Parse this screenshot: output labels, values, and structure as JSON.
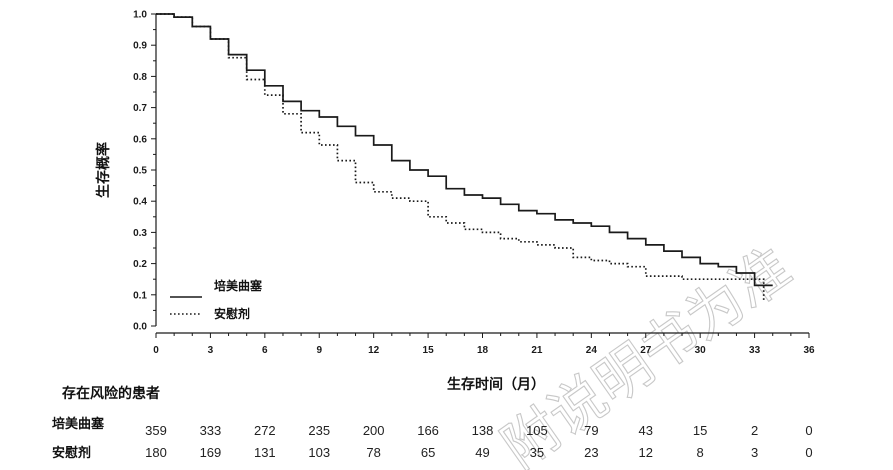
{
  "chart_data": {
    "type": "line",
    "title": "",
    "xlabel": "生存时间（月）",
    "ylabel": "生存概率",
    "xlim": [
      0,
      36
    ],
    "ylim": [
      0,
      1
    ],
    "x_ticks": [
      0,
      3,
      6,
      9,
      12,
      15,
      18,
      21,
      24,
      27,
      30,
      33,
      36
    ],
    "y_ticks": [
      "0.0",
      "0.1",
      "0.2",
      "0.3",
      "0.4",
      "0.5",
      "0.6",
      "0.7",
      "0.8",
      "0.9",
      "1.0"
    ],
    "grid": false,
    "legend_position": "bottom-left",
    "series": [
      {
        "name": "培美曲塞",
        "style": "solid",
        "color": "#1a1a1a",
        "x": [
          0,
          1,
          2,
          3,
          4,
          5,
          6,
          7,
          8,
          9,
          10,
          11,
          12,
          13,
          14,
          15,
          16,
          17,
          18,
          19,
          20,
          21,
          22,
          23,
          24,
          25,
          26,
          27,
          28,
          29,
          30,
          31,
          32,
          33,
          34
        ],
        "y": [
          1.0,
          0.99,
          0.96,
          0.92,
          0.87,
          0.82,
          0.77,
          0.72,
          0.69,
          0.67,
          0.64,
          0.61,
          0.58,
          0.53,
          0.5,
          0.48,
          0.44,
          0.42,
          0.41,
          0.39,
          0.37,
          0.36,
          0.34,
          0.33,
          0.32,
          0.3,
          0.28,
          0.26,
          0.24,
          0.22,
          0.2,
          0.19,
          0.17,
          0.13,
          0.13
        ]
      },
      {
        "name": "安慰剂",
        "style": "dotted",
        "color": "#1a1a1a",
        "x": [
          0,
          1,
          2,
          3,
          4,
          5,
          6,
          7,
          8,
          9,
          10,
          11,
          12,
          13,
          14,
          15,
          16,
          17,
          18,
          19,
          20,
          21,
          22,
          23,
          24,
          25,
          26,
          27,
          28,
          29,
          30,
          31,
          32,
          33,
          33.5
        ],
        "y": [
          1.0,
          0.99,
          0.96,
          0.92,
          0.86,
          0.79,
          0.74,
          0.68,
          0.62,
          0.58,
          0.53,
          0.46,
          0.43,
          0.41,
          0.4,
          0.35,
          0.33,
          0.31,
          0.3,
          0.28,
          0.27,
          0.26,
          0.25,
          0.22,
          0.21,
          0.2,
          0.19,
          0.16,
          0.16,
          0.15,
          0.15,
          0.15,
          0.15,
          0.15,
          0.08
        ]
      }
    ],
    "risk_table": {
      "title": "存在风险的患者",
      "rows": [
        {
          "label": "培美曲塞",
          "values": [
            "359",
            "333",
            "272",
            "235",
            "200",
            "166",
            "138",
            "105",
            "79",
            "43",
            "15",
            "2",
            "0"
          ]
        },
        {
          "label": "安慰剂",
          "values": [
            "180",
            "169",
            "131",
            "103",
            "78",
            "65",
            "49",
            "35",
            "23",
            "12",
            "8",
            "3",
            "0"
          ]
        }
      ]
    }
  },
  "watermark": "附说明书为准"
}
